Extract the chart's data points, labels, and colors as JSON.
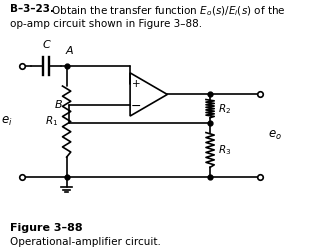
{
  "title_bold": "B–3–23.",
  "title_rest": "  Obtain the transfer function $E_o(s)/E_i(s)$ of the",
  "title_line2": "op-amp circuit shown in Figure 3–88.",
  "figure_label": "Figure 3–88",
  "figure_caption": "Operational-amplifier circuit.",
  "bg_color": "#ffffff",
  "line_color": "#000000",
  "text_color": "#000000"
}
